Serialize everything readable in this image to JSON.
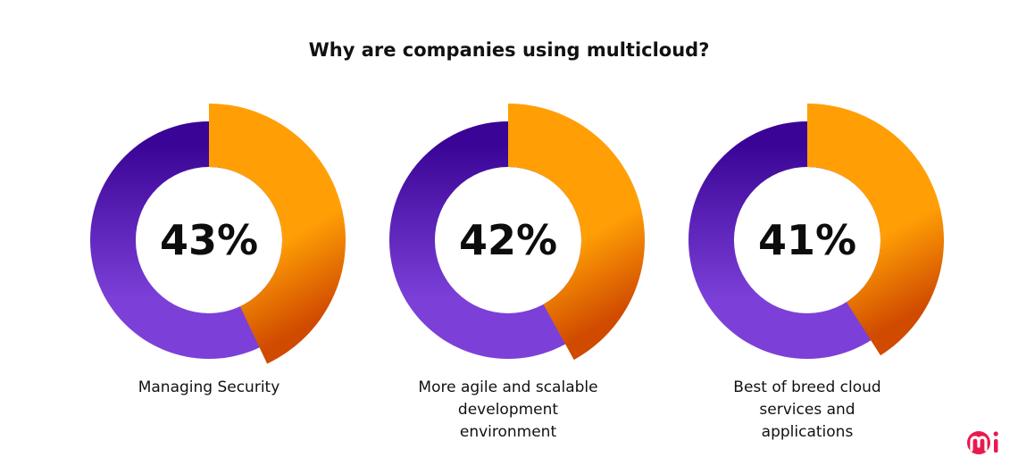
{
  "chart_data": {
    "type": "pie",
    "title": "Why are companies using multicloud?",
    "charts": [
      {
        "value": 43,
        "value_label": "43%",
        "label": "Managing Security"
      },
      {
        "value": 42,
        "value_label": "42%",
        "label": "More agile and scalable development environment"
      },
      {
        "value": 41,
        "value_label": "41%",
        "label": "Best of breed cloud services and applications"
      }
    ],
    "colors": {
      "highlight_top": "#FF9F05",
      "highlight_bottom": "#D04A00",
      "rest_top": "#3A0596",
      "rest_bottom": "#7C40D8"
    }
  },
  "logo": {
    "text": "mi",
    "color": "#E8194F"
  }
}
